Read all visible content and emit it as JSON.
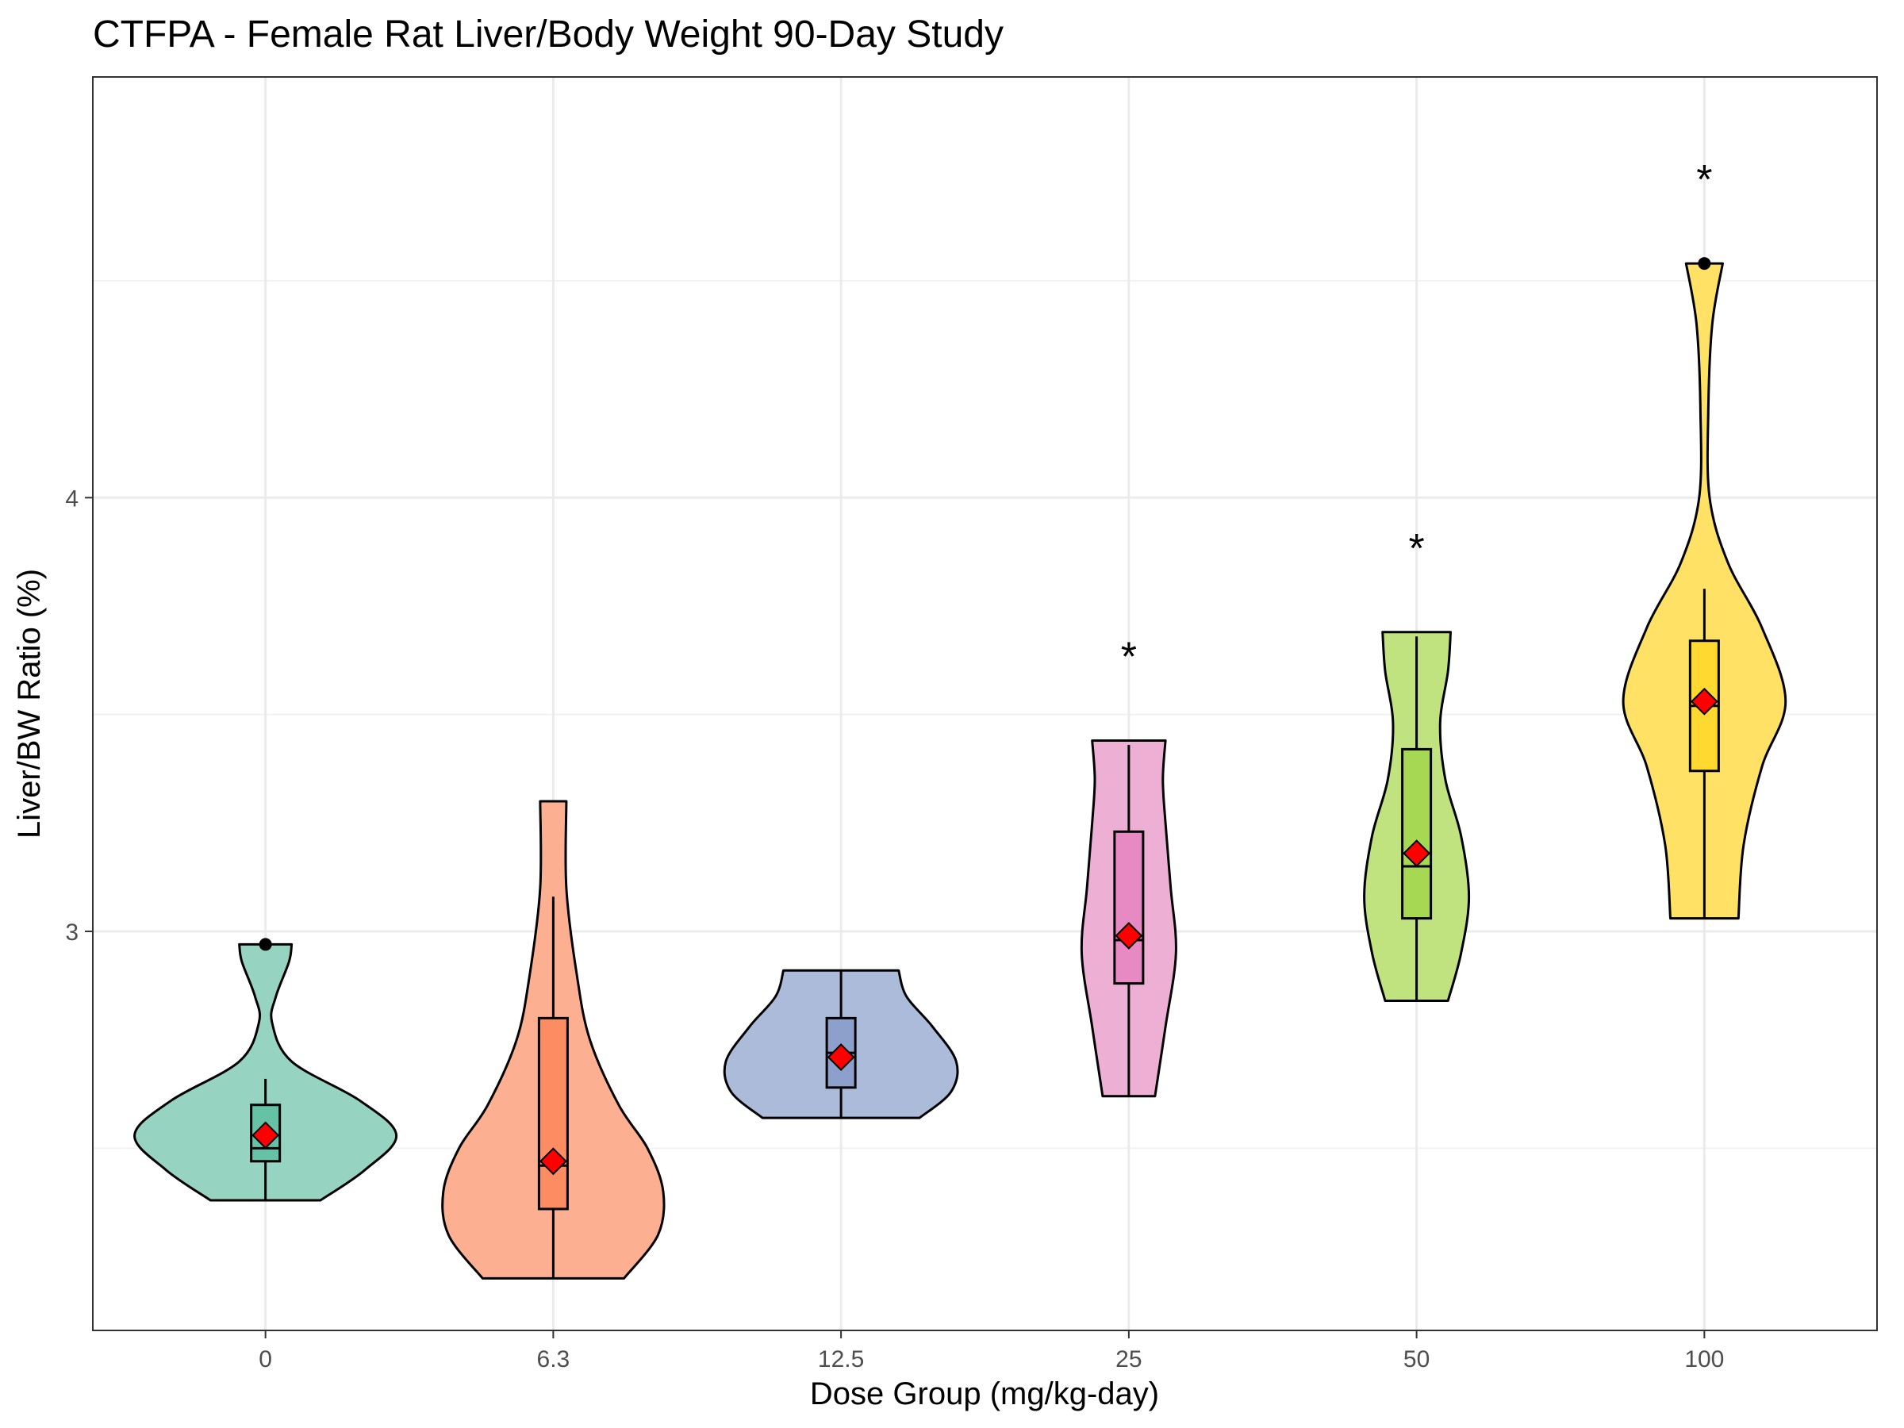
{
  "chart_data": {
    "type": "violin",
    "title": "CTFPA - Female Rat Liver/Body Weight 90-Day Study",
    "xlabel": "Dose Group (mg/kg-day)",
    "ylabel": "Liver/BW Ratio (%)",
    "ylim": [
      2.08,
      4.97
    ],
    "yticks": [
      3,
      4
    ],
    "grid": true,
    "legend": "none",
    "categories": [
      "0",
      "6.3",
      "12.5",
      "25",
      "50",
      "100"
    ],
    "groups": [
      {
        "dose": "0",
        "fill": "#96d4c1",
        "box_fill": "#66c2a5",
        "min": 2.38,
        "q1": 2.47,
        "median": 2.5,
        "q3": 2.6,
        "max": 2.66,
        "mean": 2.53,
        "outliers": [
          2.97
        ],
        "significant": "",
        "density": [
          [
            2.38,
            0.42
          ],
          [
            2.45,
            0.76
          ],
          [
            2.53,
            1.0
          ],
          [
            2.61,
            0.72
          ],
          [
            2.7,
            0.2
          ],
          [
            2.79,
            0.05
          ],
          [
            2.85,
            0.08
          ],
          [
            2.93,
            0.18
          ],
          [
            2.97,
            0.2
          ]
        ]
      },
      {
        "dose": "6.3",
        "fill": "#fcb091",
        "box_fill": "#fc8d62",
        "min": 2.2,
        "q1": 2.36,
        "median": 2.46,
        "q3": 2.8,
        "max": 3.08,
        "mean": 2.47,
        "outliers": [],
        "significant": "",
        "density": [
          [
            2.2,
            0.54
          ],
          [
            2.3,
            0.8
          ],
          [
            2.4,
            0.84
          ],
          [
            2.5,
            0.72
          ],
          [
            2.6,
            0.5
          ],
          [
            2.75,
            0.28
          ],
          [
            2.9,
            0.18
          ],
          [
            3.1,
            0.1
          ],
          [
            3.3,
            0.1
          ]
        ]
      },
      {
        "dose": "12.5",
        "fill": "#abbbd9",
        "box_fill": "#8da0cb",
        "min": 2.57,
        "q1": 2.64,
        "median": 2.72,
        "q3": 2.8,
        "max": 2.91,
        "mean": 2.71,
        "outliers": [],
        "significant": "",
        "density": [
          [
            2.57,
            0.6
          ],
          [
            2.63,
            0.84
          ],
          [
            2.7,
            0.88
          ],
          [
            2.78,
            0.7
          ],
          [
            2.85,
            0.5
          ],
          [
            2.91,
            0.44
          ]
        ]
      },
      {
        "dose": "25",
        "fill": "#eeafd5",
        "box_fill": "#e78ac3",
        "min": 2.62,
        "q1": 2.88,
        "median": 2.98,
        "q3": 3.23,
        "max": 3.43,
        "mean": 2.99,
        "outliers": [],
        "significant": "*",
        "density": [
          [
            2.62,
            0.2
          ],
          [
            2.78,
            0.28
          ],
          [
            2.95,
            0.36
          ],
          [
            3.1,
            0.32
          ],
          [
            3.25,
            0.28
          ],
          [
            3.35,
            0.26
          ],
          [
            3.44,
            0.28
          ]
        ]
      },
      {
        "dose": "50",
        "fill": "#c0e37f",
        "box_fill": "#a6d854",
        "min": 2.84,
        "q1": 3.03,
        "median": 3.15,
        "q3": 3.42,
        "max": 3.68,
        "mean": 3.18,
        "outliers": [],
        "significant": "*",
        "density": [
          [
            2.84,
            0.24
          ],
          [
            2.95,
            0.34
          ],
          [
            3.08,
            0.4
          ],
          [
            3.22,
            0.34
          ],
          [
            3.35,
            0.22
          ],
          [
            3.48,
            0.18
          ],
          [
            3.6,
            0.24
          ],
          [
            3.69,
            0.26
          ]
        ]
      },
      {
        "dose": "100",
        "fill": "#fee165",
        "box_fill": "#ffd92f",
        "min": 3.03,
        "q1": 3.37,
        "median": 3.52,
        "q3": 3.67,
        "max": 3.79,
        "mean": 3.53,
        "outliers": [
          4.54
        ],
        "significant": "*",
        "density": [
          [
            3.03,
            0.26
          ],
          [
            3.2,
            0.3
          ],
          [
            3.38,
            0.44
          ],
          [
            3.53,
            0.62
          ],
          [
            3.7,
            0.44
          ],
          [
            3.85,
            0.18
          ],
          [
            4.0,
            0.04
          ],
          [
            4.2,
            0.03
          ],
          [
            4.4,
            0.06
          ],
          [
            4.54,
            0.14
          ]
        ]
      }
    ]
  },
  "style": {
    "panel_border": "#333333",
    "grid_major": "#ebebeb",
    "grid_minor": "#f2f2f2",
    "mean_marker": "#ff0000"
  }
}
